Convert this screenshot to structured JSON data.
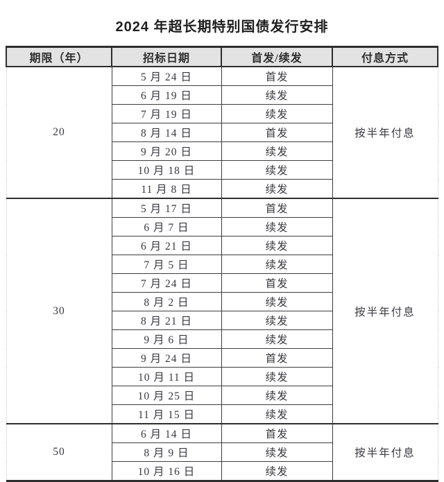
{
  "title": "2024 年超长期特别国债发行安排",
  "table": {
    "headers": [
      "期限（年）",
      "招标日期",
      "首发/续发",
      "付息方式"
    ],
    "groups": [
      {
        "term": "20",
        "payment": "按半年付息",
        "rows": [
          {
            "date": "5 月 24 日",
            "issue_type": "首发"
          },
          {
            "date": "6 月 19 日",
            "issue_type": "续发"
          },
          {
            "date": "7 月 19 日",
            "issue_type": "续发"
          },
          {
            "date": "8 月 14 日",
            "issue_type": "首发"
          },
          {
            "date": "9 月 20 日",
            "issue_type": "续发"
          },
          {
            "date": "10 月 18 日",
            "issue_type": "续发"
          },
          {
            "date": "11 月 8 日",
            "issue_type": "续发"
          }
        ]
      },
      {
        "term": "30",
        "payment": "按半年付息",
        "rows": [
          {
            "date": "5 月 17 日",
            "issue_type": "首发"
          },
          {
            "date": "6 月 7 日",
            "issue_type": "续发"
          },
          {
            "date": "6 月 21 日",
            "issue_type": "续发"
          },
          {
            "date": "7 月 5 日",
            "issue_type": "续发"
          },
          {
            "date": "7 月 24 日",
            "issue_type": "首发"
          },
          {
            "date": "8 月 2 日",
            "issue_type": "续发"
          },
          {
            "date": "8 月 21 日",
            "issue_type": "续发"
          },
          {
            "date": "9 月 6 日",
            "issue_type": "续发"
          },
          {
            "date": "9 月 24 日",
            "issue_type": "首发"
          },
          {
            "date": "10 月 11 日",
            "issue_type": "续发"
          },
          {
            "date": "10 月 25 日",
            "issue_type": "续发"
          },
          {
            "date": "11 月 15 日",
            "issue_type": "续发"
          }
        ]
      },
      {
        "term": "50",
        "payment": "按半年付息",
        "rows": [
          {
            "date": "6 月 14 日",
            "issue_type": "首发"
          },
          {
            "date": "8 月 9 日",
            "issue_type": "续发"
          },
          {
            "date": "10 月 16 日",
            "issue_type": "续发"
          }
        ]
      }
    ]
  }
}
